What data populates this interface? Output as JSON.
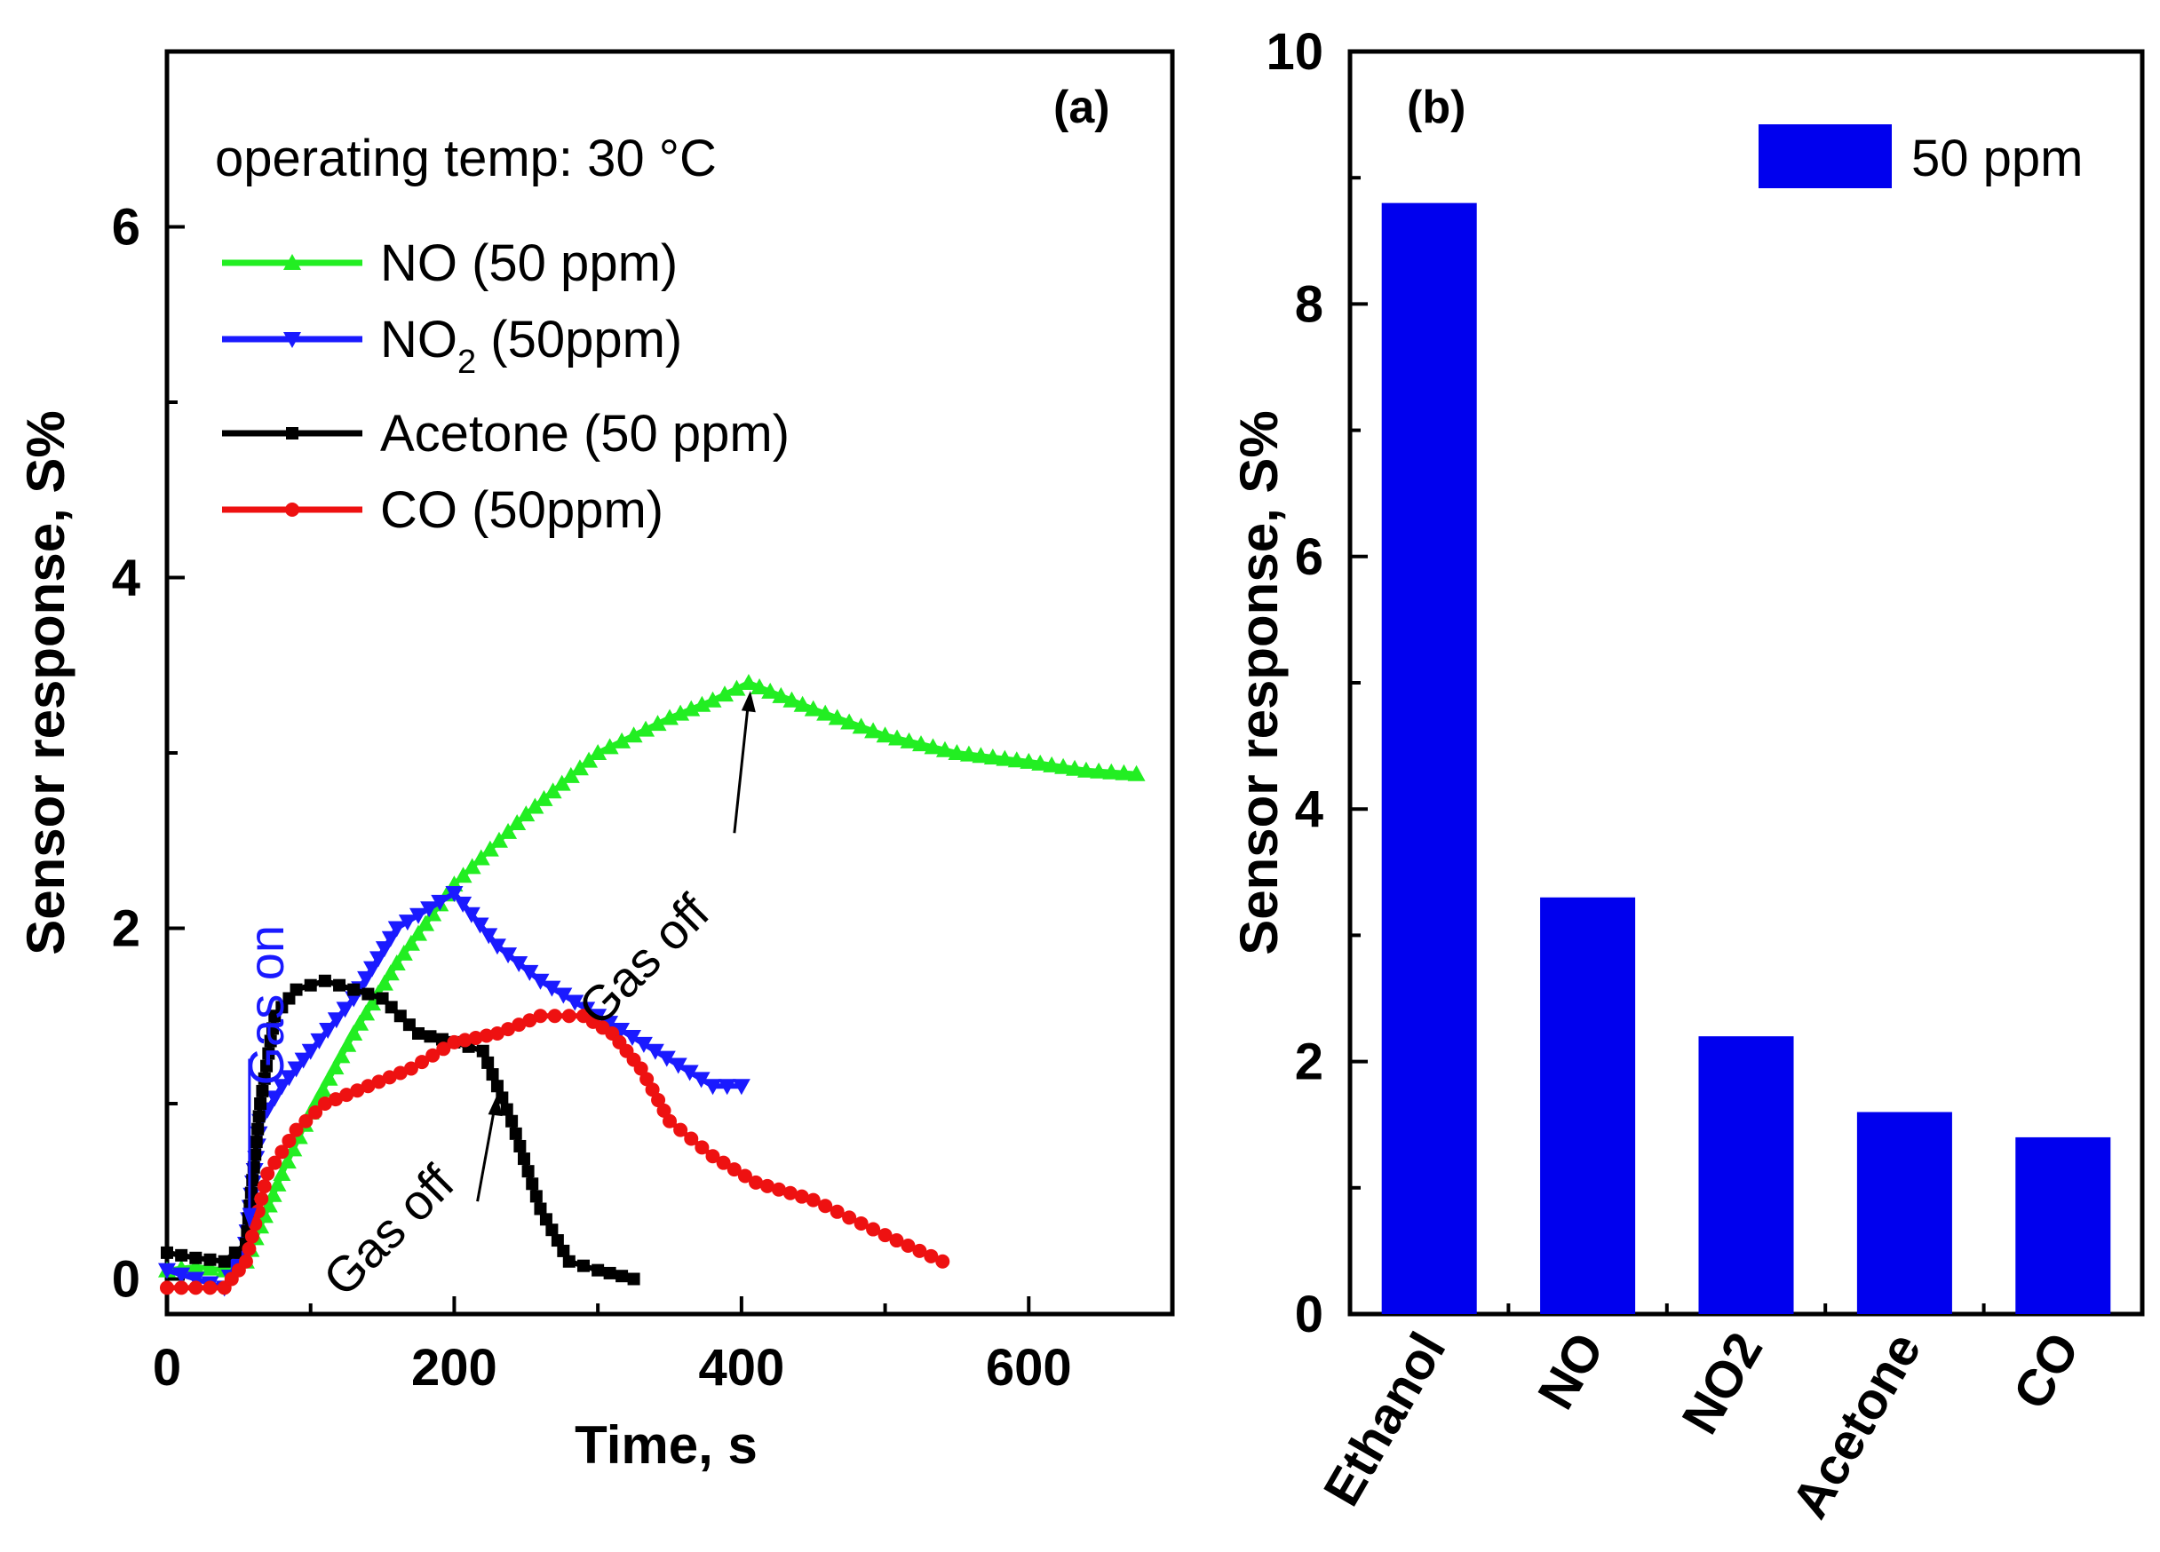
{
  "chart_data": [
    {
      "panel": "(a)",
      "type": "line",
      "xlabel": "Time, s",
      "ylabel": "Sensor response, S%",
      "xlim": [
        0,
        700
      ],
      "ylim": [
        -0.2,
        7.0
      ],
      "xticks": [
        "0",
        "200",
        "400",
        "600"
      ],
      "yticks": [
        "0",
        "2",
        "4",
        "6"
      ],
      "note": "operating temp: 30 °C",
      "annotations": [
        {
          "text": "Gas on",
          "x": 50,
          "y": 0.8,
          "color": "#1a1aff"
        },
        {
          "text": "Gas off",
          "x": 210,
          "y": 1.05,
          "color": "#000000"
        },
        {
          "text": "Gas off",
          "x": 400,
          "y": 3.1,
          "color": "#000000"
        }
      ],
      "series": [
        {
          "name": "NO (50 ppm)",
          "color": "#22ee22",
          "marker": "triangle-up",
          "x": [
            0,
            20,
            40,
            55,
            65,
            80,
            100,
            130,
            160,
            200,
            250,
            300,
            350,
            380,
            405,
            420,
            450,
            500,
            550,
            600,
            640,
            675
          ],
          "y": [
            0.05,
            0.07,
            0.05,
            0.1,
            0.3,
            0.6,
            0.95,
            1.4,
            1.8,
            2.25,
            2.65,
            3.0,
            3.2,
            3.3,
            3.4,
            3.35,
            3.25,
            3.1,
            3.0,
            2.95,
            2.9,
            2.88
          ]
        },
        {
          "name": "NO2 (50ppm)",
          "color": "#1a1aff",
          "marker": "triangle-down",
          "x": [
            0,
            20,
            40,
            55,
            65,
            80,
            100,
            130,
            160,
            190,
            200,
            230,
            260,
            300,
            340,
            380,
            400
          ],
          "y": [
            0.05,
            0.0,
            -0.05,
            0.2,
            0.9,
            1.1,
            1.3,
            1.6,
            2.0,
            2.15,
            2.2,
            1.9,
            1.7,
            1.5,
            1.3,
            1.1,
            1.1
          ]
        },
        {
          "name": "Acetone (50 ppm)",
          "color": "#000000",
          "marker": "square",
          "x": [
            0,
            20,
            40,
            55,
            65,
            75,
            90,
            110,
            130,
            150,
            175,
            200,
            220,
            240,
            260,
            280,
            300,
            325
          ],
          "y": [
            0.15,
            0.12,
            0.1,
            0.2,
            1.0,
            1.5,
            1.65,
            1.7,
            1.65,
            1.6,
            1.4,
            1.35,
            1.3,
            0.9,
            0.4,
            0.1,
            0.05,
            0.0
          ]
        },
        {
          "name": "CO (50ppm)",
          "color": "#ee1111",
          "marker": "circle",
          "x": [
            0,
            20,
            40,
            55,
            70,
            90,
            110,
            140,
            170,
            200,
            230,
            260,
            290,
            310,
            330,
            350,
            380,
            410,
            450,
            500,
            540
          ],
          "y": [
            -0.05,
            -0.05,
            -0.05,
            0.1,
            0.6,
            0.85,
            1.0,
            1.1,
            1.2,
            1.35,
            1.4,
            1.5,
            1.5,
            1.4,
            1.2,
            0.9,
            0.7,
            0.55,
            0.45,
            0.25,
            0.1
          ]
        }
      ]
    },
    {
      "panel": "(b)",
      "type": "bar",
      "ylabel": "Sensor response, S%",
      "ylim": [
        0,
        10
      ],
      "yticks": [
        "0",
        "2",
        "4",
        "6",
        "8",
        "10"
      ],
      "legend": "50 ppm",
      "color": "#0000ee",
      "categories": [
        "Ethanol",
        "NO",
        "NO2",
        "Acetone",
        "CO"
      ],
      "values": [
        8.8,
        3.3,
        2.2,
        1.6,
        1.4
      ]
    }
  ]
}
